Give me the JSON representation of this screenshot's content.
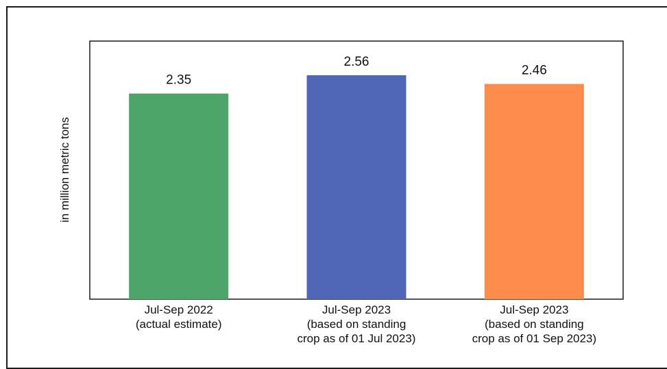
{
  "chart_data": {
    "type": "bar",
    "ylabel": "in million metric tons",
    "ylim": [
      0,
      2.95
    ],
    "grid": false,
    "categories": [
      [
        "Jul-Sep 2022",
        "(actual estimate)"
      ],
      [
        "Jul-Sep 2023",
        "(based on standing",
        "crop as of 01 Jul 2023)"
      ],
      [
        "Jul-Sep 2023",
        "(based on standing",
        "crop as of 01 Sep 2023)"
      ]
    ],
    "values": [
      2.35,
      2.56,
      2.46
    ],
    "value_labels": [
      "2.35",
      "2.56",
      "2.46"
    ],
    "colors": [
      "#4ea56a",
      "#4f66b5",
      "#fc8c4b"
    ]
  }
}
